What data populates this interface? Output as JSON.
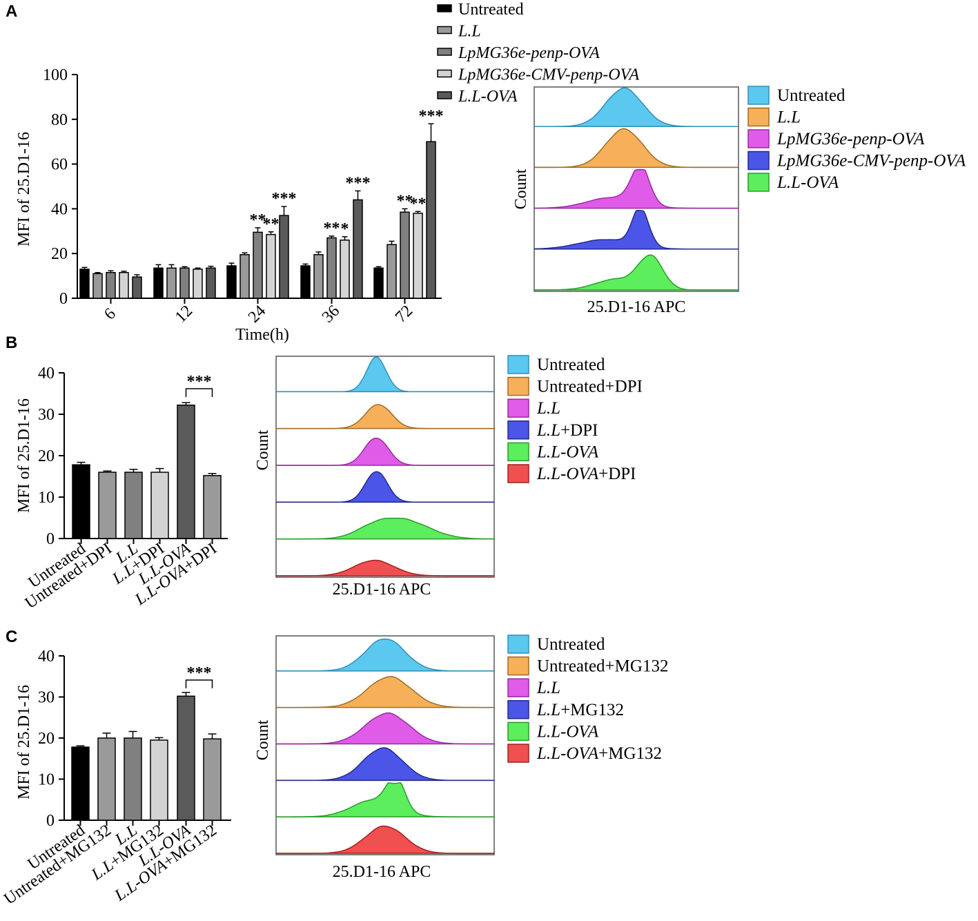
{
  "figure": {
    "colors": {
      "black": "#000000",
      "bar_untreated": "#000000",
      "bar_ll": "#9a9a9a",
      "bar_pp": "#808080",
      "bar_cmv": "#d3d3d3",
      "bar_llova": "#5a5a5a",
      "hist_untreated": "#5bc8f0",
      "hist_untreated_line": "#2f8fb8",
      "hist_ll": "#f7b05a",
      "hist_ll_line": "#a06a20",
      "hist_pp": "#e05be8",
      "hist_pp_line": "#9a2aa2",
      "hist_cmv": "#4b55e8",
      "hist_cmv_line": "#222a8a",
      "hist_llova": "#5cee5c",
      "hist_llova_line": "#2a9a2a",
      "hist_red": "#f05050",
      "hist_red_line": "#a02020"
    }
  },
  "panelA": {
    "label": "A",
    "legend": [
      "Untreated",
      "L.L",
      "LpMG36e-penp-OVA",
      "LpMG36e-CMV-penp-OVA",
      "L.L-OVA"
    ],
    "hist_legend": [
      "Untreated",
      "L.L",
      "LpMG36e-penp-OVA",
      "LpMG36e-CMV-penp-OVA",
      "L.L-OVA"
    ],
    "hist_ylabel": "Count",
    "hist_xlabel": "25.D1-16 APC",
    "chart_data": {
      "type": "bar",
      "title": "",
      "xlabel": "Time(h)",
      "ylabel": "MFI of  25.D1-16",
      "ylim": [
        0,
        100
      ],
      "yticks": [
        "0",
        "20",
        "40",
        "60",
        "80",
        "100"
      ],
      "categories": [
        "6",
        "12",
        "24",
        "36",
        "72"
      ],
      "series": [
        {
          "name": "Untreated",
          "values": [
            13,
            13.5,
            14.5,
            14.5,
            13.5
          ],
          "errors": [
            0.8,
            1.5,
            1.2,
            0.8,
            0.6
          ]
        },
        {
          "name": "L.L",
          "values": [
            11,
            13.5,
            19.5,
            19.5,
            24
          ],
          "errors": [
            0.5,
            1.5,
            0.8,
            1.2,
            1.5
          ]
        },
        {
          "name": "LpMG36e-penp-OVA",
          "values": [
            11.5,
            13.5,
            29.5,
            27,
            38.5
          ],
          "errors": [
            0.8,
            0.6,
            2.0,
            0.8,
            1.5
          ]
        },
        {
          "name": "LpMG36e-CMV-penp-OVA",
          "values": [
            11.5,
            13,
            28.5,
            26,
            38
          ],
          "errors": [
            0.6,
            0.5,
            1.2,
            1.5,
            0.8
          ]
        },
        {
          "name": "L.L-OVA",
          "values": [
            9.5,
            13.5,
            37,
            44,
            70
          ],
          "errors": [
            1.0,
            0.8,
            4.0,
            4.0,
            8.0
          ]
        }
      ],
      "significance": [
        {
          "category": "24",
          "series": "LpMG36e-penp-OVA",
          "mark": "**"
        },
        {
          "category": "24",
          "series": "LpMG36e-CMV-penp-OVA",
          "mark": "**"
        },
        {
          "category": "24",
          "series": "L.L-OVA",
          "mark": "***"
        },
        {
          "category": "36",
          "series": "LpMG36e-penp-OVA",
          "mark": "**"
        },
        {
          "category": "36",
          "series": "LpMG36e-CMV-penp-OVA",
          "mark": "*"
        },
        {
          "category": "36",
          "series": "L.L-OVA",
          "mark": "***"
        },
        {
          "category": "72",
          "series": "LpMG36e-penp-OVA",
          "mark": "**"
        },
        {
          "category": "72",
          "series": "LpMG36e-CMV-penp-OVA",
          "mark": "**"
        },
        {
          "category": "72",
          "series": "L.L-OVA",
          "mark": "***"
        }
      ]
    }
  },
  "panelB": {
    "label": "B",
    "hist_legend": [
      "Untreated",
      "Untreated+DPI",
      "L.L",
      "L.L+DPI",
      "L.L-OVA",
      "L.L-OVA+DPI"
    ],
    "hist_ylabel": "Count",
    "hist_xlabel": "25.D1-16 APC",
    "sig_mark": "***",
    "chart_data": {
      "type": "bar",
      "title": "",
      "xlabel": "",
      "ylabel": "MFI of  25.D1-16",
      "ylim": [
        0,
        40
      ],
      "yticks": [
        "0",
        "10",
        "20",
        "30",
        "40"
      ],
      "categories": [
        "Untreated",
        "Untreated+DPI",
        "L.L",
        "L.L+DPI",
        "L.L-OVA",
        "L.L-OVA+DPI"
      ],
      "values": [
        17.8,
        16.0,
        16.0,
        16.0,
        32.2,
        15.2
      ],
      "errors": [
        0.6,
        0.3,
        0.7,
        0.9,
        0.6,
        0.5
      ],
      "significance": {
        "between": [
          "L.L-OVA",
          "L.L-OVA+DPI"
        ],
        "mark": "***"
      }
    }
  },
  "panelC": {
    "label": "C",
    "hist_legend": [
      "Untreated",
      "Untreated+MG132",
      "L.L",
      "L.L+MG132",
      "L.L-OVA",
      "L.L-OVA+MG132"
    ],
    "hist_ylabel": "Count",
    "hist_xlabel": "25.D1-16 APC",
    "sig_mark": "***",
    "chart_data": {
      "type": "bar",
      "title": "",
      "xlabel": "",
      "ylabel": "MFI of  25.D1-16",
      "ylim": [
        0,
        40
      ],
      "yticks": [
        "0",
        "10",
        "20",
        "30",
        "40"
      ],
      "categories": [
        "Untreated",
        "Untreated+MG132",
        "L.L",
        "L.L+MG132",
        "L.L-OVA",
        "L.L-OVA+MG132"
      ],
      "values": [
        17.8,
        20.0,
        20.0,
        19.5,
        30.2,
        19.8
      ],
      "errors": [
        0.3,
        1.2,
        1.6,
        0.6,
        0.9,
        1.2
      ],
      "significance": {
        "between": [
          "L.L-OVA",
          "L.L-OVA+MG132"
        ],
        "mark": "***"
      }
    }
  }
}
